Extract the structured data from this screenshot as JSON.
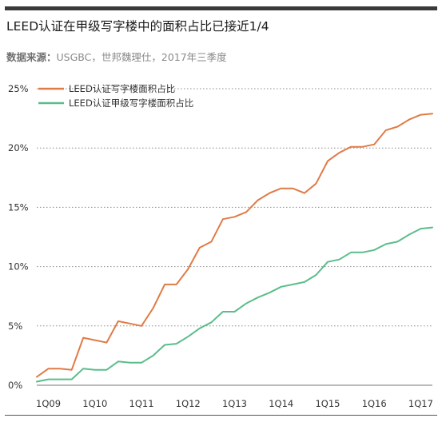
{
  "title": "LEED认证在甲级写字楼中的面积占比已接近1/4",
  "source": {
    "label": "数据来源：",
    "text": "USGBC，世邦魏理仕，2017年三季度"
  },
  "colors": {
    "series1": "#e07b46",
    "series2": "#5bbd8a",
    "grid": "#8c8c8c",
    "axis_text": "#333333"
  },
  "chart_data": {
    "type": "line",
    "title": "LEED认证在甲级写字楼中的面积占比已接近1/4",
    "ylim": [
      0,
      25
    ],
    "yticks": [
      "0%",
      "5%",
      "10%",
      "15%",
      "20%",
      "25%"
    ],
    "ytick_values": [
      0,
      5,
      10,
      15,
      20,
      25
    ],
    "xlabels": [
      "1Q09",
      "1Q10",
      "1Q11",
      "1Q12",
      "1Q13",
      "1Q14",
      "1Q15",
      "1Q16",
      "1Q17"
    ],
    "xlabel_index": [
      1,
      5,
      9,
      13,
      17,
      21,
      25,
      29,
      33
    ],
    "x_count": 35,
    "legend_position": "top-left",
    "grid": "horizontal dotted",
    "series": [
      {
        "name": "LEED认证写字楼面积占比",
        "values": [
          0.7,
          1.4,
          1.4,
          1.3,
          4.0,
          3.8,
          3.6,
          5.4,
          5.2,
          5.0,
          6.5,
          8.5,
          8.5,
          9.8,
          11.6,
          12.1,
          14.0,
          14.2,
          14.6,
          15.6,
          16.2,
          16.6,
          16.6,
          16.2,
          17.0,
          18.9,
          19.6,
          20.1,
          20.1,
          20.3,
          21.5,
          21.8,
          22.4,
          22.8,
          22.9
        ]
      },
      {
        "name": "LEED认证甲级写字楼面积占比",
        "values": [
          0.3,
          0.5,
          0.5,
          0.5,
          1.4,
          1.3,
          1.3,
          2.0,
          1.9,
          1.9,
          2.5,
          3.4,
          3.5,
          4.1,
          4.8,
          5.3,
          6.2,
          6.2,
          6.9,
          7.4,
          7.8,
          8.3,
          8.5,
          8.7,
          9.3,
          10.4,
          10.6,
          11.2,
          11.2,
          11.4,
          11.9,
          12.1,
          12.7,
          13.2,
          13.3
        ]
      }
    ]
  }
}
